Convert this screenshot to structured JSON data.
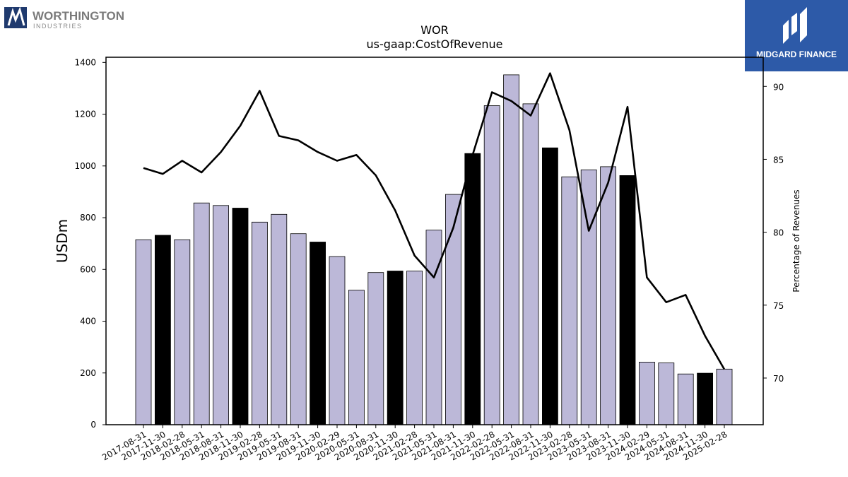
{
  "branding": {
    "company_name": "WORTHINGTON",
    "company_sub": "INDUSTRIES",
    "publisher": "MIDGARD FINANCE"
  },
  "colors": {
    "bar_default": "#bcb8d8",
    "bar_highlight": "#000000",
    "line": "#000000",
    "publisher_bg": "#2d5aa8",
    "company_logo": "#1f3a6e"
  },
  "chart_data": {
    "type": "bar",
    "title": "WOR",
    "subtitle": "us-gaap:CostOfRevenue",
    "ylabel": "USDm",
    "y2label": "Percentage of Revenues",
    "ylim": [
      0,
      1420
    ],
    "y2lim": [
      66.8,
      92.0
    ],
    "yticks": [
      0,
      200,
      400,
      600,
      800,
      1000,
      1200,
      1400
    ],
    "y2ticks": [
      70,
      75,
      80,
      85,
      90
    ],
    "grid": false,
    "categories": [
      "2017-08-31",
      "2017-11-30",
      "2018-02-28",
      "2018-05-31",
      "2018-08-31",
      "2018-11-30",
      "2019-02-28",
      "2019-05-31",
      "2019-08-31",
      "2019-11-30",
      "2020-02-29",
      "2020-05-31",
      "2020-08-31",
      "2020-11-30",
      "2021-02-28",
      "2021-05-31",
      "2021-08-31",
      "2021-11-30",
      "2022-02-28",
      "2022-05-31",
      "2022-08-31",
      "2022-11-30",
      "2023-02-28",
      "2023-05-31",
      "2023-08-31",
      "2023-11-30",
      "2024-02-29",
      "2024-05-31",
      "2024-08-31",
      "2024-11-30",
      "2025-02-28"
    ],
    "series": [
      {
        "kind": "bar",
        "values": [
          715,
          732,
          715,
          857,
          847,
          837,
          783,
          813,
          738,
          706,
          650,
          520,
          588,
          594,
          594,
          752,
          890,
          1048,
          1233,
          1352,
          1240,
          1070,
          958,
          985,
          997,
          963,
          242,
          239,
          196,
          199,
          215
        ],
        "highlighted": [
          false,
          true,
          false,
          false,
          false,
          true,
          false,
          false,
          false,
          true,
          false,
          false,
          false,
          true,
          false,
          false,
          false,
          true,
          false,
          false,
          false,
          true,
          false,
          false,
          false,
          true,
          false,
          false,
          false,
          true,
          false
        ]
      },
      {
        "kind": "line",
        "axis": "right",
        "values": [
          84.4,
          84.0,
          84.9,
          84.1,
          85.5,
          87.3,
          89.7,
          86.6,
          86.3,
          85.5,
          84.9,
          85.3,
          83.9,
          81.5,
          78.4,
          76.9,
          80.3,
          85.3,
          89.6,
          89.0,
          88.0,
          90.9,
          87.0,
          80.1,
          83.4,
          88.6,
          76.9,
          75.2,
          75.7,
          72.9,
          70.6
        ]
      }
    ]
  }
}
